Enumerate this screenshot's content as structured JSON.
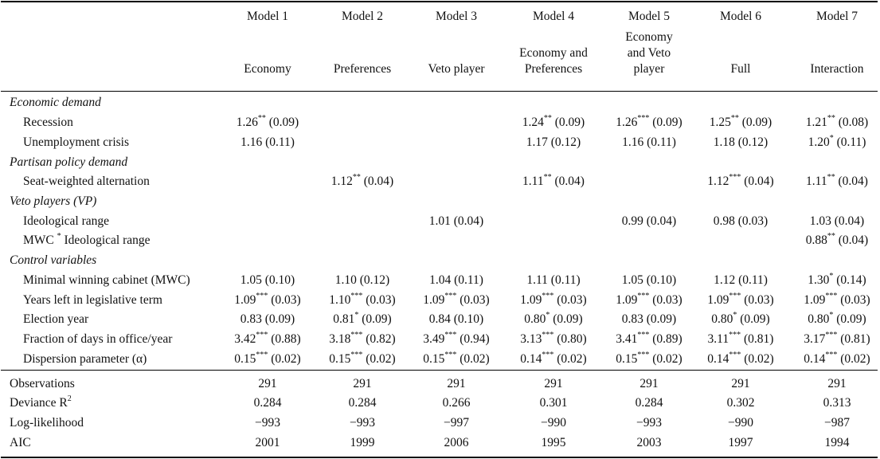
{
  "headers": [
    {
      "model": "Model 1",
      "name": [
        "Economy"
      ]
    },
    {
      "model": "Model 2",
      "name": [
        "Preferences"
      ]
    },
    {
      "model": "Model 3",
      "name": [
        "Veto player"
      ]
    },
    {
      "model": "Model 4",
      "name": [
        "Economy and",
        "Preferences"
      ]
    },
    {
      "model": "Model 5",
      "name": [
        "Economy",
        "and Veto",
        "player"
      ]
    },
    {
      "model": "Model 6",
      "name": [
        "Full"
      ]
    },
    {
      "model": "Model 7",
      "name": [
        "Interaction"
      ]
    }
  ],
  "rows": [
    {
      "kind": "section",
      "label": "Economic demand"
    },
    {
      "kind": "row",
      "label": "Recession",
      "cells": [
        {
          "v": "1.26",
          "s": "**",
          "se": "(0.09)"
        },
        null,
        null,
        {
          "v": "1.24",
          "s": "**",
          "se": "(0.09)"
        },
        {
          "v": "1.26",
          "s": "***",
          "se": "(0.09)"
        },
        {
          "v": "1.25",
          "s": "**",
          "se": "(0.09)"
        },
        {
          "v": "1.21",
          "s": "**",
          "se": "(0.08)"
        }
      ]
    },
    {
      "kind": "row",
      "label": "Unemployment crisis",
      "cells": [
        {
          "v": "1.16",
          "s": "",
          "se": "(0.11)"
        },
        null,
        null,
        {
          "v": "1.17",
          "s": "",
          "se": "(0.12)"
        },
        {
          "v": "1.16",
          "s": "",
          "se": "(0.11)"
        },
        {
          "v": "1.18",
          "s": "",
          "se": "(0.12)"
        },
        {
          "v": "1.20",
          "s": "*",
          "se": "(0.11)"
        }
      ]
    },
    {
      "kind": "section",
      "label": "Partisan policy demand"
    },
    {
      "kind": "row",
      "label": "Seat-weighted alternation",
      "cells": [
        null,
        {
          "v": "1.12",
          "s": "**",
          "se": "(0.04)"
        },
        null,
        {
          "v": "1.11",
          "s": "**",
          "se": "(0.04)"
        },
        null,
        {
          "v": "1.12",
          "s": "***",
          "se": "(0.04)"
        },
        {
          "v": "1.11",
          "s": "**",
          "se": "(0.04)"
        }
      ]
    },
    {
      "kind": "section",
      "label": "Veto players (VP)"
    },
    {
      "kind": "row",
      "label": "Ideological range",
      "cells": [
        null,
        null,
        {
          "v": "1.01",
          "s": "",
          "se": "(0.04)"
        },
        null,
        {
          "v": "0.99",
          "s": "",
          "se": "(0.04)"
        },
        {
          "v": "0.98",
          "s": "",
          "se": "(0.03)"
        },
        {
          "v": "1.03",
          "s": "",
          "se": "(0.04)"
        }
      ]
    },
    {
      "kind": "row",
      "label": "MWC",
      "label_sup": "*",
      "label_rest": " Ideological range",
      "cells": [
        null,
        null,
        null,
        null,
        null,
        null,
        {
          "v": "0.88",
          "s": "**",
          "se": "(0.04)"
        }
      ]
    },
    {
      "kind": "section",
      "label": "Control variables"
    },
    {
      "kind": "row",
      "label": "Minimal winning cabinet (MWC)",
      "cells": [
        {
          "v": "1.05",
          "s": "",
          "se": "(0.10)"
        },
        {
          "v": "1.10",
          "s": "",
          "se": "(0.12)"
        },
        {
          "v": "1.04",
          "s": "",
          "se": "(0.11)"
        },
        {
          "v": "1.11",
          "s": "",
          "se": "(0.11)"
        },
        {
          "v": "1.05",
          "s": "",
          "se": "(0.10)"
        },
        {
          "v": "1.12",
          "s": "",
          "se": "(0.11)"
        },
        {
          "v": "1.30",
          "s": "*",
          "se": "(0.14)"
        }
      ]
    },
    {
      "kind": "row",
      "label": "Years left in legislative term",
      "cells": [
        {
          "v": "1.09",
          "s": "***",
          "se": "(0.03)"
        },
        {
          "v": "1.10",
          "s": "***",
          "se": "(0.03)"
        },
        {
          "v": "1.09",
          "s": "***",
          "se": "(0.03)"
        },
        {
          "v": "1.09",
          "s": "***",
          "se": "(0.03)"
        },
        {
          "v": "1.09",
          "s": "***",
          "se": "(0.03)"
        },
        {
          "v": "1.09",
          "s": "***",
          "se": "(0.03)"
        },
        {
          "v": "1.09",
          "s": "***",
          "se": "(0.03)"
        }
      ]
    },
    {
      "kind": "row",
      "label": "Election year",
      "cells": [
        {
          "v": "0.83",
          "s": "",
          "se": "(0.09)"
        },
        {
          "v": "0.81",
          "s": "*",
          "se": "(0.09)"
        },
        {
          "v": "0.84",
          "s": "",
          "se": "(0.10)"
        },
        {
          "v": "0.80",
          "s": "*",
          "se": "(0.09)"
        },
        {
          "v": "0.83",
          "s": "",
          "se": "(0.09)"
        },
        {
          "v": "0.80",
          "s": "*",
          "se": "(0.09)"
        },
        {
          "v": "0.80",
          "s": "*",
          "se": "(0.09)"
        }
      ]
    },
    {
      "kind": "row",
      "label": "Fraction of days in office/year",
      "cells": [
        {
          "v": "3.42",
          "s": "***",
          "se": "(0.88)"
        },
        {
          "v": "3.18",
          "s": "***",
          "se": "(0.82)"
        },
        {
          "v": "3.49",
          "s": "***",
          "se": "(0.94)"
        },
        {
          "v": "3.13",
          "s": "***",
          "se": "(0.80)"
        },
        {
          "v": "3.41",
          "s": "***",
          "se": "(0.89)"
        },
        {
          "v": "3.11",
          "s": "***",
          "se": "(0.81)"
        },
        {
          "v": "3.17",
          "s": "***",
          "se": "(0.81)"
        }
      ]
    },
    {
      "kind": "row",
      "label": "Dispersion parameter (α)",
      "cells": [
        {
          "v": "0.15",
          "s": "***",
          "se": "(0.02)"
        },
        {
          "v": "0.15",
          "s": "***",
          "se": "(0.02)"
        },
        {
          "v": "0.15",
          "s": "***",
          "se": "(0.02)"
        },
        {
          "v": "0.14",
          "s": "***",
          "se": "(0.02)"
        },
        {
          "v": "0.15",
          "s": "***",
          "se": "(0.02)"
        },
        {
          "v": "0.14",
          "s": "***",
          "se": "(0.02)"
        },
        {
          "v": "0.14",
          "s": "***",
          "se": "(0.02)"
        }
      ]
    }
  ],
  "stats": [
    {
      "label": "Observations",
      "values": [
        "291",
        "291",
        "291",
        "291",
        "291",
        "291",
        "291"
      ]
    },
    {
      "label": "Deviance R",
      "label_sup": "2",
      "values": [
        "0.284",
        "0.284",
        "0.266",
        "0.301",
        "0.284",
        "0.302",
        "0.313"
      ]
    },
    {
      "label": "Log-likelihood",
      "values": [
        "−993",
        "−993",
        "−997",
        "−990",
        "−993",
        "−990",
        "−987"
      ]
    },
    {
      "label": "AIC",
      "values": [
        "2001",
        "1999",
        "2006",
        "1995",
        "2003",
        "1997",
        "1994"
      ]
    }
  ]
}
